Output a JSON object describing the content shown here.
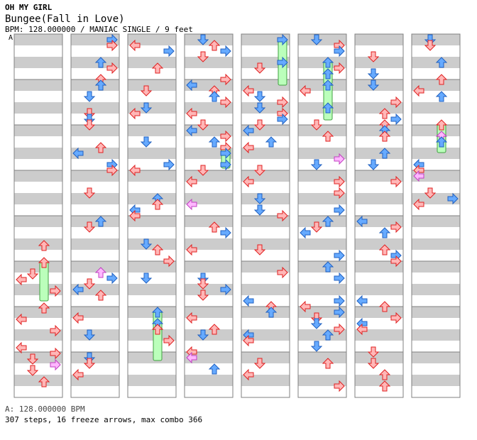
{
  "header": {
    "artist": "OH MY GIRL",
    "song": "Bungee(Fall in Love)",
    "info": "BPM: 128.000000 / MANIAC SINGLE / 9 feet",
    "bpm_marker": "A"
  },
  "footer": {
    "legend": "A: 128.000000 BPM",
    "stats": "307 steps, 16 freeze arrows, max combo 366"
  },
  "colors": {
    "red_fill": "#ffb7b7",
    "red_stroke": "#e02020",
    "blue_fill": "#66aaff",
    "blue_stroke": "#2060c0",
    "pink_fill": "#ffb7ff",
    "pink_stroke": "#c040c0",
    "freeze_fill": "#bbffbb",
    "freeze_stroke": "#40a040",
    "band": "#cccccc",
    "border": "#808080"
  },
  "chart_data": {
    "type": "step chart",
    "columns": 8,
    "lanes": [
      "left",
      "down",
      "up",
      "right"
    ],
    "steps": 307,
    "freeze_arrows": 16,
    "max_combo": 366,
    "bpm": 128.0
  }
}
